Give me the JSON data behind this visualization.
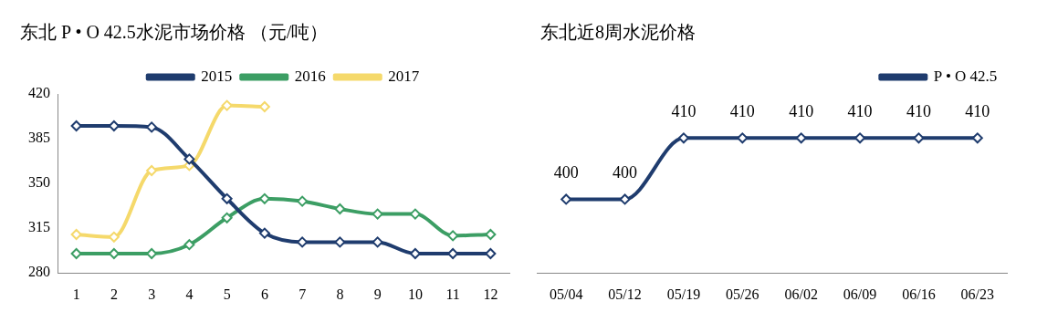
{
  "chart_data": [
    {
      "type": "line",
      "title": "东北 P • O 42.5水泥市场价格 （元/吨）",
      "categories": [
        "1",
        "2",
        "3",
        "4",
        "5",
        "6",
        "7",
        "8",
        "9",
        "10",
        "11",
        "12"
      ],
      "series": [
        {
          "name": "2015",
          "color": "#1f3c6e",
          "values": [
            395,
            395,
            394,
            369,
            338,
            311,
            304,
            304,
            304,
            295,
            295,
            295
          ]
        },
        {
          "name": "2016",
          "color": "#3c9e64",
          "values": [
            295,
            295,
            295,
            302,
            323,
            338,
            336,
            330,
            326,
            326,
            309,
            310
          ]
        },
        {
          "name": "2017",
          "color": "#f5d96b",
          "values": [
            310,
            308,
            360,
            364,
            411,
            410,
            null,
            null,
            null,
            null,
            null,
            null
          ]
        }
      ],
      "ylim": [
        280,
        420
      ],
      "yticks": [
        280,
        315,
        350,
        385,
        420
      ],
      "legend": "top",
      "marker": "diamond"
    },
    {
      "type": "line",
      "title": "东北近8周水泥价格",
      "categories": [
        "05/04",
        "05/12",
        "05/19",
        "05/26",
        "06/02",
        "06/09",
        "06/16",
        "06/23"
      ],
      "series": [
        {
          "name": "P • O 42.5",
          "color": "#1f3c6e",
          "values": [
            400,
            400,
            410,
            410,
            410,
            410,
            410,
            410
          ]
        }
      ],
      "legend": "top right",
      "marker": "diamond",
      "data_labels": true,
      "tick_labels": "x"
    }
  ]
}
